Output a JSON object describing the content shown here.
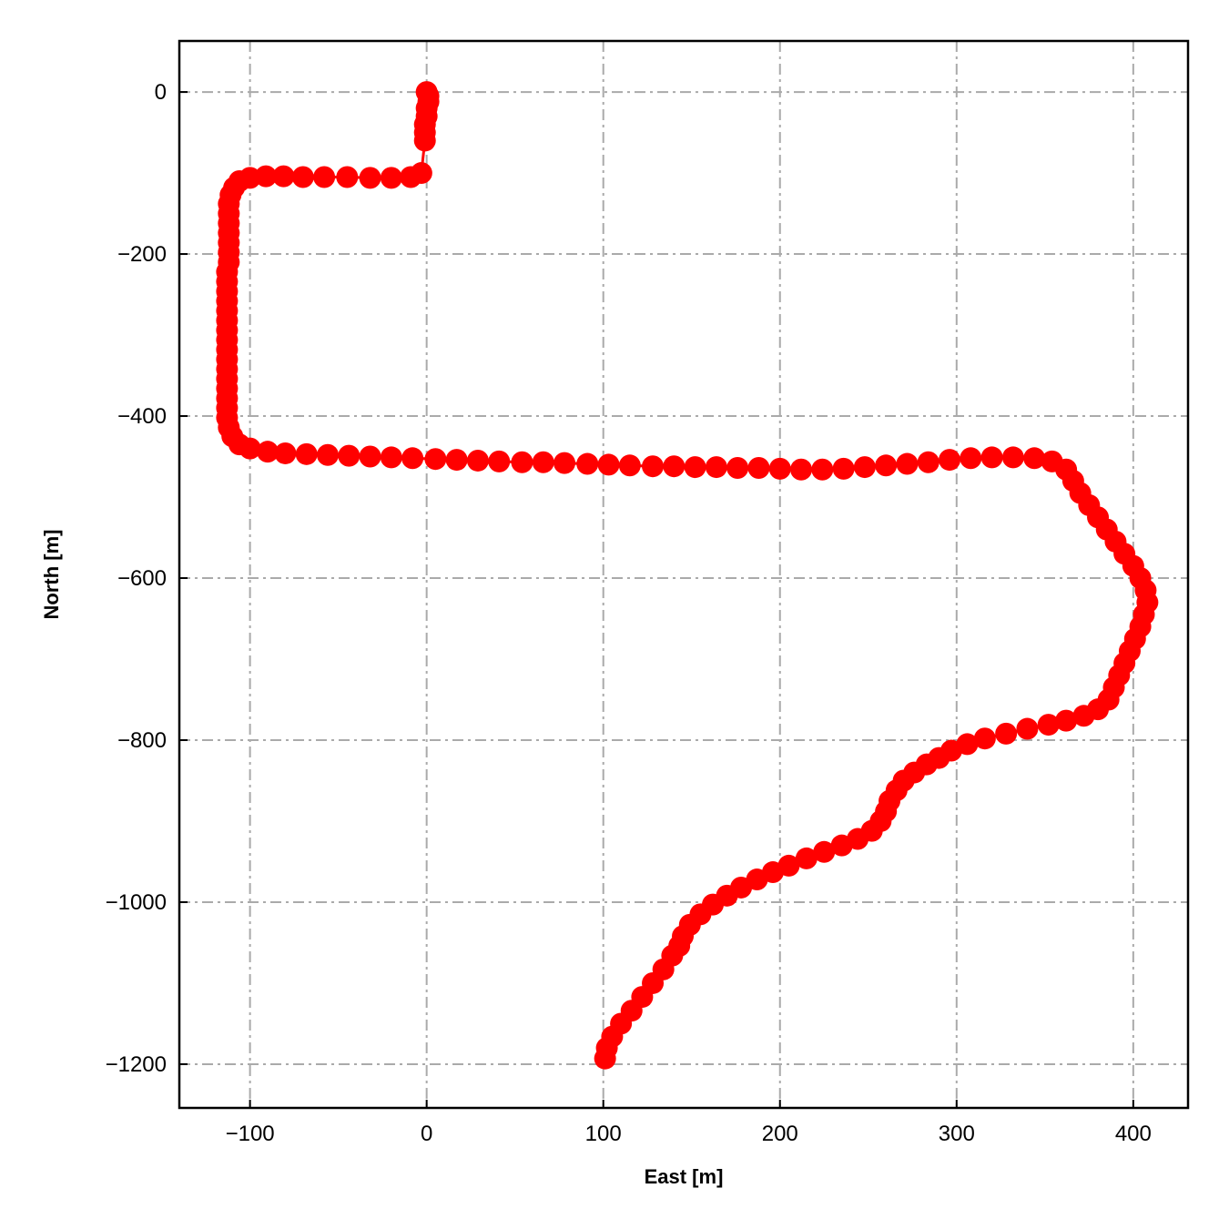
{
  "chart_data": {
    "type": "scatter",
    "title": "",
    "xlabel": "East [m]",
    "ylabel": "North [m]",
    "xlim": [
      -140,
      431
    ],
    "ylim": [
      -1254,
      63
    ],
    "xticks": [
      -100,
      0,
      100,
      200,
      300,
      400
    ],
    "xtick_labels": [
      "−100",
      "0",
      "100",
      "200",
      "300",
      "400"
    ],
    "yticks": [
      0,
      -200,
      -400,
      -600,
      -800,
      -1000,
      -1200
    ],
    "ytick_labels": [
      "0",
      "−200",
      "−400",
      "−600",
      "−800",
      "−1000",
      "−1200"
    ],
    "grid": true,
    "grid_style": "dash-dot",
    "grid_color": "#aaaaaa",
    "marker_color": "#ff0000",
    "line_color": "#ff0000",
    "connected": true,
    "points": [
      [
        0,
        0
      ],
      [
        1,
        -5
      ],
      [
        1,
        -12
      ],
      [
        0,
        -20
      ],
      [
        0,
        -30
      ],
      [
        -1,
        -40
      ],
      [
        -1,
        -50
      ],
      [
        -1,
        -60
      ],
      [
        -3,
        -100
      ],
      [
        -9,
        -105
      ],
      [
        -20,
        -106
      ],
      [
        -32,
        -106
      ],
      [
        -45,
        -105
      ],
      [
        -58,
        -105
      ],
      [
        -70,
        -105
      ],
      [
        -81,
        -104
      ],
      [
        -91,
        -104
      ],
      [
        -100,
        -106
      ],
      [
        -106,
        -110
      ],
      [
        -109,
        -118
      ],
      [
        -111,
        -127
      ],
      [
        -112,
        -138
      ],
      [
        -112,
        -150
      ],
      [
        -112,
        -162
      ],
      [
        -112,
        -174
      ],
      [
        -112,
        -186
      ],
      [
        -112,
        -198
      ],
      [
        -112,
        -210
      ],
      [
        -113,
        -222
      ],
      [
        -113,
        -234
      ],
      [
        -113,
        -246
      ],
      [
        -113,
        -258
      ],
      [
        -113,
        -270
      ],
      [
        -113,
        -282
      ],
      [
        -113,
        -294
      ],
      [
        -113,
        -306
      ],
      [
        -113,
        -318
      ],
      [
        -113,
        -330
      ],
      [
        -113,
        -342
      ],
      [
        -113,
        -354
      ],
      [
        -113,
        -366
      ],
      [
        -113,
        -378
      ],
      [
        -113,
        -390
      ],
      [
        -113,
        -402
      ],
      [
        -112,
        -414
      ],
      [
        -110,
        -425
      ],
      [
        -106,
        -435
      ],
      [
        -100,
        -440
      ],
      [
        -90,
        -444
      ],
      [
        -80,
        -446
      ],
      [
        -68,
        -447
      ],
      [
        -56,
        -448
      ],
      [
        -44,
        -449
      ],
      [
        -32,
        -450
      ],
      [
        -20,
        -451
      ],
      [
        -8,
        -452
      ],
      [
        5,
        -453
      ],
      [
        17,
        -454
      ],
      [
        29,
        -455
      ],
      [
        41,
        -456
      ],
      [
        54,
        -457
      ],
      [
        66,
        -457
      ],
      [
        78,
        -458
      ],
      [
        91,
        -459
      ],
      [
        103,
        -460
      ],
      [
        115,
        -461
      ],
      [
        128,
        -462
      ],
      [
        140,
        -462
      ],
      [
        152,
        -463
      ],
      [
        164,
        -463
      ],
      [
        176,
        -464
      ],
      [
        188,
        -464
      ],
      [
        200,
        -465
      ],
      [
        212,
        -466
      ],
      [
        224,
        -466
      ],
      [
        236,
        -465
      ],
      [
        248,
        -463
      ],
      [
        260,
        -461
      ],
      [
        272,
        -459
      ],
      [
        284,
        -457
      ],
      [
        296,
        -454
      ],
      [
        308,
        -452
      ],
      [
        320,
        -451
      ],
      [
        332,
        -451
      ],
      [
        344,
        -452
      ],
      [
        354,
        -456
      ],
      [
        362,
        -466
      ],
      [
        366,
        -480
      ],
      [
        370,
        -495
      ],
      [
        375,
        -510
      ],
      [
        380,
        -525
      ],
      [
        385,
        -540
      ],
      [
        390,
        -555
      ],
      [
        395,
        -570
      ],
      [
        400,
        -585
      ],
      [
        404,
        -600
      ],
      [
        407,
        -615
      ],
      [
        408,
        -630
      ],
      [
        406,
        -645
      ],
      [
        404,
        -660
      ],
      [
        401,
        -675
      ],
      [
        398,
        -690
      ],
      [
        395,
        -705
      ],
      [
        392,
        -720
      ],
      [
        389,
        -735
      ],
      [
        386,
        -750
      ],
      [
        380,
        -762
      ],
      [
        372,
        -770
      ],
      [
        362,
        -776
      ],
      [
        352,
        -781
      ],
      [
        340,
        -786
      ],
      [
        328,
        -792
      ],
      [
        316,
        -798
      ],
      [
        306,
        -805
      ],
      [
        297,
        -813
      ],
      [
        290,
        -822
      ],
      [
        283,
        -830
      ],
      [
        276,
        -840
      ],
      [
        270,
        -850
      ],
      [
        266,
        -862
      ],
      [
        262,
        -875
      ],
      [
        260,
        -888
      ],
      [
        257,
        -900
      ],
      [
        252,
        -912
      ],
      [
        244,
        -922
      ],
      [
        235,
        -930
      ],
      [
        225,
        -938
      ],
      [
        215,
        -946
      ],
      [
        205,
        -955
      ],
      [
        196,
        -963
      ],
      [
        187,
        -972
      ],
      [
        178,
        -982
      ],
      [
        170,
        -992
      ],
      [
        162,
        -1003
      ],
      [
        155,
        -1015
      ],
      [
        149,
        -1028
      ],
      [
        145,
        -1042
      ],
      [
        143,
        -1054
      ],
      [
        139,
        -1066
      ],
      [
        134,
        -1083
      ],
      [
        128,
        -1100
      ],
      [
        122,
        -1117
      ],
      [
        116,
        -1134
      ],
      [
        110,
        -1150
      ],
      [
        105,
        -1166
      ],
      [
        102,
        -1180
      ],
      [
        101,
        -1193
      ]
    ]
  }
}
